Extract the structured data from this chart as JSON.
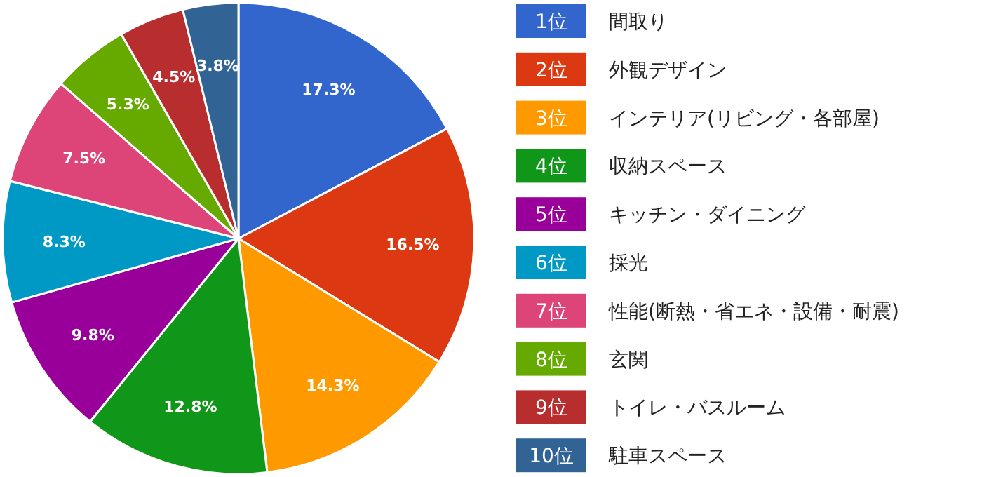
{
  "chart_data": {
    "type": "pie",
    "data_labels": true,
    "legend": "right",
    "categories": [
      "間取り",
      "外観デザイン",
      "インテリア(リビング・各部屋)",
      "収納スペース",
      "キッチン・ダイニング",
      "採光",
      "性能(断熱・省エネ・設備・耐震)",
      "玄関",
      "トイレ・バスルーム",
      "駐車スペース"
    ],
    "values": [
      17.3,
      16.5,
      14.3,
      12.8,
      9.8,
      8.3,
      7.5,
      5.3,
      4.5,
      3.8
    ],
    "value_labels": [
      "17.3%",
      "16.5%",
      "14.3%",
      "12.8%",
      "9.8%",
      "8.3%",
      "7.5%",
      "5.3%",
      "4.5%",
      "3.8%"
    ],
    "colors": [
      "#3366cc",
      "#dc3912",
      "#ff9900",
      "#109618",
      "#990099",
      "#0099c6",
      "#dd4477",
      "#66aa00",
      "#b82e2e",
      "#316395"
    ],
    "annotations": [
      "1位",
      "2位",
      "3位",
      "4位",
      "5位",
      "6位",
      "7位",
      "8位",
      "9位",
      "10位"
    ]
  }
}
